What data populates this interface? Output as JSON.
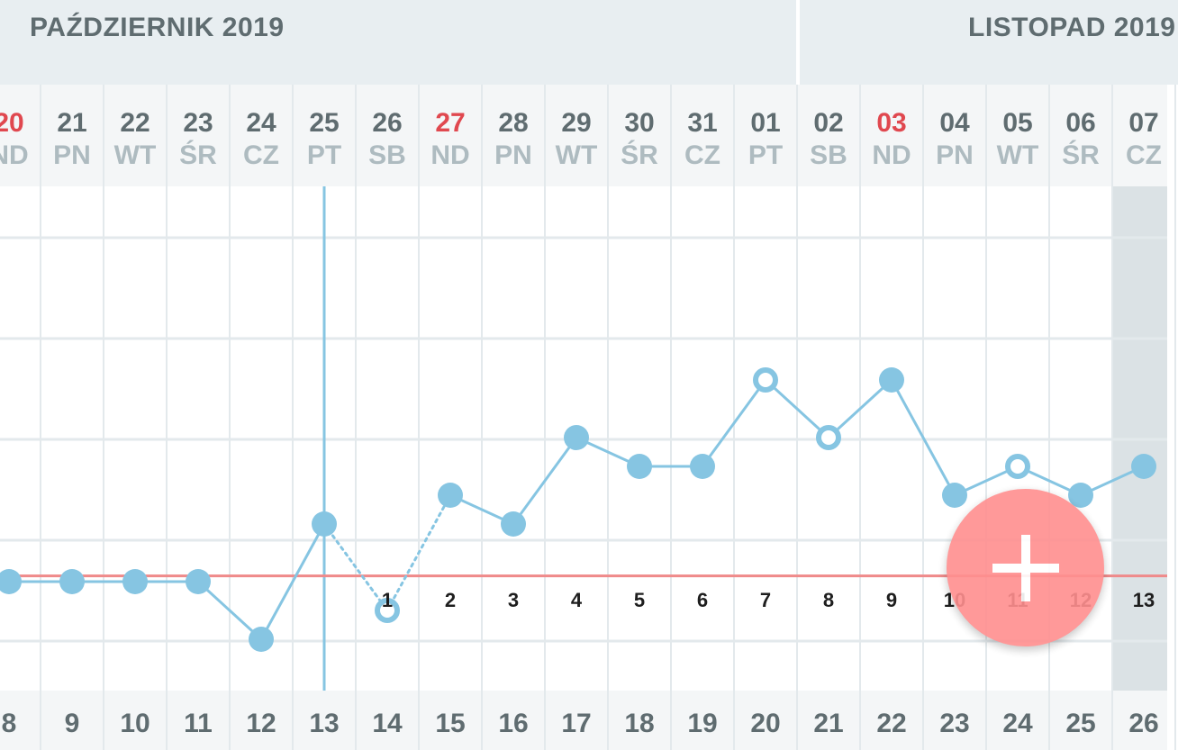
{
  "months": {
    "october": "PAŹDZIERNIK 2019",
    "november": "LISTOPAD 2019"
  },
  "days": [
    {
      "num": "20",
      "dow": "ND",
      "red": true
    },
    {
      "num": "21",
      "dow": "PN",
      "red": false
    },
    {
      "num": "22",
      "dow": "WT",
      "red": false
    },
    {
      "num": "23",
      "dow": "ŚR",
      "red": false
    },
    {
      "num": "24",
      "dow": "CZ",
      "red": false
    },
    {
      "num": "25",
      "dow": "PT",
      "red": false
    },
    {
      "num": "26",
      "dow": "SB",
      "red": false
    },
    {
      "num": "27",
      "dow": "ND",
      "red": true
    },
    {
      "num": "28",
      "dow": "PN",
      "red": false
    },
    {
      "num": "29",
      "dow": "WT",
      "red": false
    },
    {
      "num": "30",
      "dow": "ŚR",
      "red": false
    },
    {
      "num": "31",
      "dow": "CZ",
      "red": false
    },
    {
      "num": "01",
      "dow": "PT",
      "red": false
    },
    {
      "num": "02",
      "dow": "SB",
      "red": false
    },
    {
      "num": "03",
      "dow": "ND",
      "red": true
    },
    {
      "num": "04",
      "dow": "PN",
      "red": false
    },
    {
      "num": "05",
      "dow": "WT",
      "red": false
    },
    {
      "num": "06",
      "dow": "ŚR",
      "red": false
    },
    {
      "num": "07",
      "dow": "CZ",
      "red": false
    }
  ],
  "cycle_days_top": [
    "1",
    "2",
    "3",
    "4",
    "5",
    "6",
    "7",
    "8",
    "9",
    "10",
    "11",
    "12",
    "13"
  ],
  "cycle_days_bottom": [
    "8",
    "9",
    "10",
    "11",
    "12",
    "13",
    "14",
    "15",
    "16",
    "17",
    "18",
    "19",
    "20",
    "21",
    "22",
    "23",
    "24",
    "25",
    "26"
  ],
  "colors": {
    "line": "#86c5e2",
    "coverline": "#ef8a8a",
    "fab": "#ff8f8f",
    "red_day": "#e0484f"
  },
  "chart_data": {
    "type": "line",
    "title": "",
    "xlabel": "",
    "ylabel": "",
    "categories": [
      "20",
      "21",
      "22",
      "23",
      "24",
      "25",
      "26",
      "27",
      "28",
      "29",
      "30",
      "31",
      "01",
      "02",
      "03",
      "04",
      "05",
      "06",
      "07"
    ],
    "series": [
      {
        "values": [
          2,
          2,
          2,
          2,
          0,
          4,
          1,
          5,
          4,
          7,
          6,
          6,
          9,
          7,
          9,
          5,
          6,
          5,
          6
        ],
        "marker": [
          "filled",
          "filled",
          "filled",
          "filled",
          "filled",
          "filled",
          "hollow",
          "filled",
          "filled",
          "filled",
          "filled",
          "filled",
          "hollow",
          "hollow",
          "filled",
          "filled",
          "hollow",
          "filled",
          "filled"
        ]
      }
    ],
    "segment_style": [
      "solid",
      "solid",
      "solid",
      "solid",
      "solid",
      "dotted",
      "dotted",
      "solid",
      "solid",
      "solid",
      "solid",
      "solid",
      "solid",
      "solid",
      "solid",
      "solid",
      "solid",
      "solid"
    ],
    "coverline_value": 2.2,
    "ylim": [
      -2,
      11
    ],
    "grid": true
  },
  "fab": {
    "icon": "plus-icon"
  }
}
